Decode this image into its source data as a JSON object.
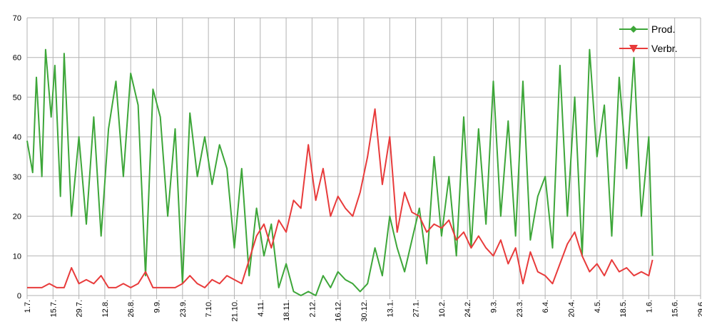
{
  "chart_data": {
    "type": "line",
    "x_categories": [
      "1.7.",
      "15.7.",
      "29.7.",
      "12.8.",
      "26.8.",
      "9.9.",
      "23.9.",
      "7.10.",
      "21.10.",
      "4.11.",
      "18.11.",
      "2.12.",
      "16.12.",
      "30.12.",
      "13.1.",
      "27.1.",
      "10.2.",
      "24.2.",
      "9.3.",
      "23.3.",
      "6.4.",
      "20.4.",
      "4.5.",
      "18.5.",
      "1.6.",
      "15.6.",
      "29.6."
    ],
    "ylim": [
      0,
      70
    ],
    "y_ticks": [
      0,
      10,
      20,
      30,
      40,
      50,
      60,
      70
    ],
    "grid": true,
    "legend_position": "top-right",
    "series": [
      {
        "name": "Prod.",
        "color": "#3da639",
        "marker": "diamond",
        "days": [
          0,
          3,
          5,
          8,
          10,
          13,
          15,
          18,
          20,
          24,
          28,
          32,
          36,
          40,
          44,
          48,
          52,
          56,
          60,
          64,
          68,
          72,
          76,
          80,
          84,
          88,
          92,
          96,
          100,
          104,
          108,
          112,
          116,
          120,
          124,
          128,
          132,
          136,
          140,
          144,
          148,
          152,
          156,
          160,
          164,
          168,
          172,
          176,
          180,
          184,
          188,
          192,
          196,
          200,
          204,
          208,
          212,
          216,
          220,
          224,
          228,
          232,
          236,
          240,
          244,
          248,
          252,
          256,
          260,
          264,
          268,
          272,
          276,
          280,
          284,
          288,
          292,
          296,
          300,
          304,
          308,
          312,
          316,
          320,
          324,
          328,
          332,
          336,
          338
        ],
        "values": [
          39,
          31,
          55,
          30,
          62,
          45,
          58,
          25,
          61,
          20,
          40,
          18,
          45,
          15,
          42,
          54,
          30,
          56,
          48,
          5,
          52,
          45,
          20,
          42,
          3,
          46,
          30,
          40,
          28,
          38,
          32,
          12,
          32,
          5,
          22,
          10,
          18,
          2,
          8,
          1,
          0,
          1,
          0,
          5,
          2,
          6,
          4,
          3,
          1,
          3,
          12,
          5,
          20,
          12,
          6,
          14,
          22,
          8,
          35,
          15,
          30,
          10,
          45,
          12,
          42,
          18,
          54,
          20,
          44,
          15,
          54,
          14,
          25,
          30,
          12,
          58,
          20,
          50,
          10,
          62,
          35,
          48,
          15,
          55,
          32,
          60,
          20,
          40,
          10
        ],
        "values_labeled": false
      },
      {
        "name": "Verbr.",
        "color": "#e83b3b",
        "marker": "triangle-down",
        "days": [
          0,
          4,
          8,
          12,
          16,
          20,
          24,
          28,
          32,
          36,
          40,
          44,
          48,
          52,
          56,
          60,
          64,
          68,
          72,
          76,
          80,
          84,
          88,
          92,
          96,
          100,
          104,
          108,
          112,
          116,
          120,
          124,
          128,
          132,
          136,
          140,
          144,
          148,
          152,
          156,
          160,
          164,
          168,
          172,
          176,
          180,
          184,
          188,
          192,
          196,
          200,
          204,
          208,
          212,
          216,
          220,
          224,
          228,
          232,
          236,
          240,
          244,
          248,
          252,
          256,
          260,
          264,
          268,
          272,
          276,
          280,
          284,
          288,
          292,
          296,
          300,
          304,
          308,
          312,
          316,
          320,
          324,
          328,
          332,
          336,
          338
        ],
        "values": [
          2,
          2,
          2,
          3,
          2,
          2,
          7,
          3,
          4,
          3,
          5,
          2,
          2,
          3,
          2,
          3,
          6,
          2,
          2,
          2,
          2,
          3,
          5,
          3,
          2,
          4,
          3,
          5,
          4,
          3,
          9,
          15,
          18,
          12,
          19,
          16,
          24,
          22,
          38,
          24,
          32,
          20,
          25,
          22,
          20,
          26,
          35,
          47,
          28,
          40,
          16,
          26,
          21,
          20,
          16,
          18,
          17,
          19,
          14,
          16,
          12,
          15,
          12,
          10,
          14,
          8,
          12,
          3,
          11,
          6,
          5,
          3,
          8,
          13,
          16,
          10,
          6,
          8,
          5,
          9,
          6,
          7,
          5,
          6,
          5,
          9
        ],
        "values_labeled": false
      }
    ]
  }
}
